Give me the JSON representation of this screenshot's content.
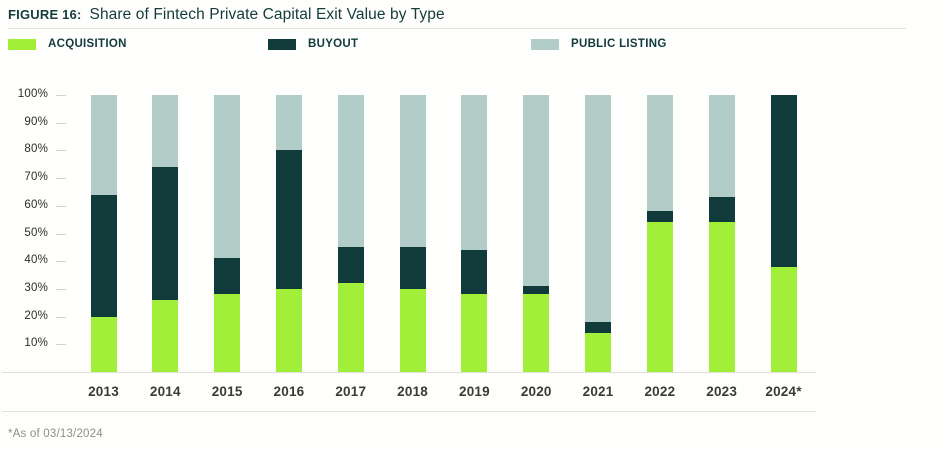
{
  "figure": {
    "label": "FIGURE 16:",
    "title": "Share of Fintech Private Capital Exit Value by Type",
    "footnote": "*As of 03/13/2024"
  },
  "colors": {
    "acquisition": "#a2ef3a",
    "buyout": "#113a3b",
    "public_listing": "#b2cdc7",
    "title_text": "#143c3a",
    "axis_text": "#2e2c29",
    "year_text": "#3a3a38",
    "divider": "#e7e2d8"
  },
  "legend": [
    {
      "label": "ACQUISITION",
      "color": "#a2ef3a"
    },
    {
      "label": "BUYOUT",
      "color": "#113a3b"
    },
    {
      "label": "PUBLIC LISTING",
      "color": "#b2cdc7"
    }
  ],
  "chart_data": {
    "type": "bar",
    "stacked": true,
    "unit": "percent of total exit value",
    "title": "Share of Fintech Private Capital Exit Value by Type",
    "categories": [
      "2013",
      "2014",
      "2015",
      "2016",
      "2017",
      "2018",
      "2019",
      "2020",
      "2021",
      "2022",
      "2023",
      "2024*"
    ],
    "series": [
      {
        "name": "ACQUISITION",
        "color": "#a2ef3a",
        "values": [
          20,
          26,
          28,
          30,
          32,
          30,
          28,
          28,
          14,
          54,
          54,
          38
        ]
      },
      {
        "name": "BUYOUT",
        "color": "#113a3b",
        "values": [
          44,
          48,
          13,
          50,
          13,
          15,
          16,
          3,
          4,
          4,
          9,
          62
        ]
      },
      {
        "name": "PUBLIC LISTING",
        "color": "#b2cdc7",
        "values": [
          36,
          26,
          59,
          20,
          55,
          55,
          56,
          69,
          82,
          42,
          37,
          0
        ]
      }
    ],
    "ylim": [
      0,
      100
    ],
    "ytick_labels": [
      "100%",
      "90%",
      "80%",
      "70%",
      "60%",
      "50%",
      "40%",
      "30%",
      "20%",
      "10%"
    ],
    "grid": false,
    "legend_position": "top",
    "xlabel": "",
    "ylabel": ""
  }
}
